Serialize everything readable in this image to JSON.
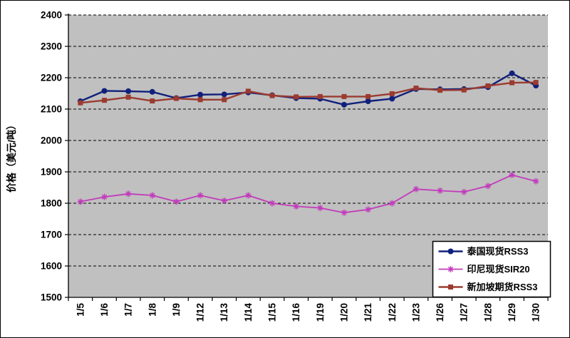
{
  "chart_data": {
    "type": "line",
    "title": "",
    "ylabel": "价格（美元/吨）",
    "xlabel": "",
    "ylim": [
      1500,
      2400
    ],
    "ytick_step": 100,
    "grid": "dashed-horizontal",
    "plot_bg": "#c0c0c0",
    "legend_position": "bottom-right",
    "categories": [
      "1/5",
      "1/6",
      "1/7",
      "1/8",
      "1/9",
      "1/12",
      "1/13",
      "1/14",
      "1/15",
      "1/16",
      "1/19",
      "1/20",
      "1/21",
      "1/22",
      "1/23",
      "1/26",
      "1/27",
      "1/28",
      "1/29",
      "1/30"
    ],
    "series": [
      {
        "name": "泰国现货RSS3",
        "color": "#10207c",
        "marker": "circle",
        "values": [
          2125,
          2158,
          2157,
          2155,
          2135,
          2146,
          2147,
          2153,
          2144,
          2135,
          2133,
          2114,
          2125,
          2133,
          2164,
          2163,
          2164,
          2170,
          2214,
          2175
        ]
      },
      {
        "name": "印尼现货SIR20",
        "color": "#c23bbb",
        "marker": "asterisk",
        "values": [
          1805,
          1820,
          1830,
          1825,
          1805,
          1825,
          1808,
          1825,
          1800,
          1790,
          1785,
          1770,
          1780,
          1800,
          1845,
          1840,
          1836,
          1855,
          1890,
          1870
        ]
      },
      {
        "name": "新加坡期货RSS3",
        "color": "#9b3b30",
        "marker": "square",
        "values": [
          2120,
          2128,
          2138,
          2126,
          2134,
          2130,
          2130,
          2157,
          2143,
          2139,
          2140,
          2140,
          2140,
          2149,
          2167,
          2160,
          2161,
          2174,
          2184,
          2185
        ]
      }
    ],
    "yticks": [
      1500,
      1600,
      1700,
      1800,
      1900,
      2000,
      2100,
      2200,
      2300,
      2400
    ]
  }
}
